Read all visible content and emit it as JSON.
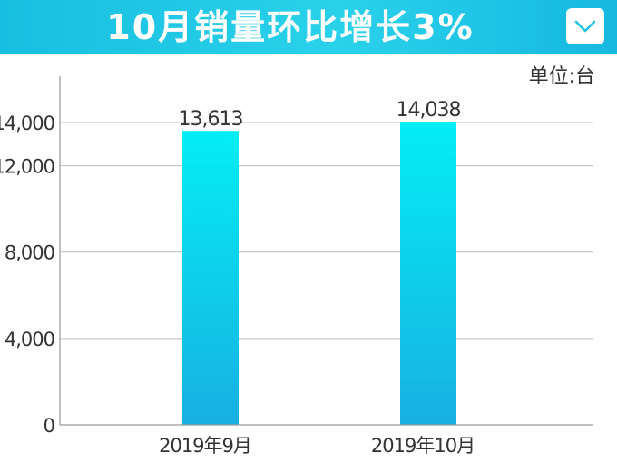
{
  "header": {
    "title": "10月销量环比增长3%"
  },
  "unit_label": "单位:台",
  "colors": {
    "header": "#1cc3e3",
    "bar_top": "#04eef4",
    "bar_bottom": "#18b0e2",
    "grid": "#bbbbbb",
    "text": "#333333"
  },
  "icons": {
    "dropdown": "chevron-down-icon"
  },
  "chart_data": {
    "type": "bar",
    "categories": [
      "2019年9月",
      "2019年10月"
    ],
    "values": [
      13613,
      14038
    ],
    "value_labels": [
      "13,613",
      "14,038"
    ],
    "yticks": [
      0,
      4000,
      8000,
      12000,
      14000
    ],
    "ytick_labels": [
      "0",
      "4,000",
      "8,000",
      "12,000",
      "14,000"
    ],
    "ylim": [
      0,
      15000
    ],
    "grid": true,
    "legend": "none",
    "title": "",
    "xlabel": "",
    "ylabel": ""
  }
}
